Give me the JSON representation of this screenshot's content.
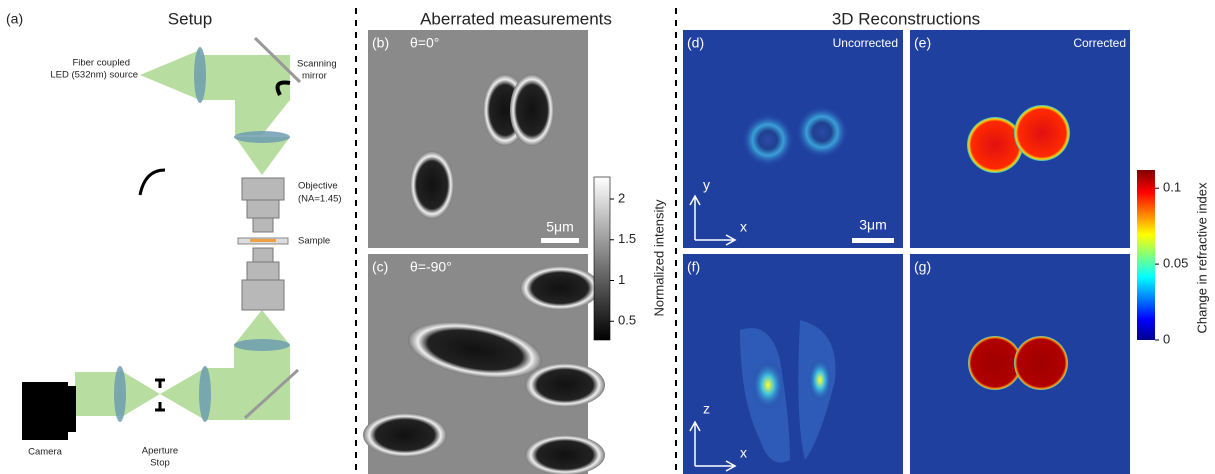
{
  "setup": {
    "panel": "(a)",
    "title": "Setup",
    "source": [
      "Fiber coupled",
      "LED (532nm) source"
    ],
    "mirror": [
      "Scanning",
      "mirror"
    ],
    "objective": [
      "Objective",
      "(NA=1.45)"
    ],
    "sample": "Sample",
    "camera": "Camera",
    "aperture": [
      "Aperture",
      "Stop"
    ]
  },
  "measurements": {
    "title": "Aberrated measurements",
    "b": {
      "panel": "(b)",
      "angle": "θ=0°",
      "scale": "5μm"
    },
    "c": {
      "panel": "(c)",
      "angle": "θ=-90°"
    }
  },
  "reconstructions": {
    "title": "3D Reconstructions",
    "d": {
      "panel": "(d)",
      "label": "Uncorrected"
    },
    "e": {
      "panel": "(e)",
      "label": "Corrected"
    },
    "f": {
      "panel": "(f)"
    },
    "g": {
      "panel": "(g)"
    },
    "axes_top": [
      "y",
      "x"
    ],
    "axes_bottom": [
      "z",
      "x"
    ],
    "scale": "3μm"
  },
  "intensity_colorbar": {
    "label": "Normalized intensity",
    "lim": [
      0.27,
      2.27
    ],
    "ticks": [
      0.5,
      1,
      1.5,
      2
    ]
  },
  "index_colorbar": {
    "label": "Change in refractive index",
    "lim": [
      0,
      0.112
    ],
    "ticks": [
      0,
      0.05,
      0.1
    ]
  }
}
